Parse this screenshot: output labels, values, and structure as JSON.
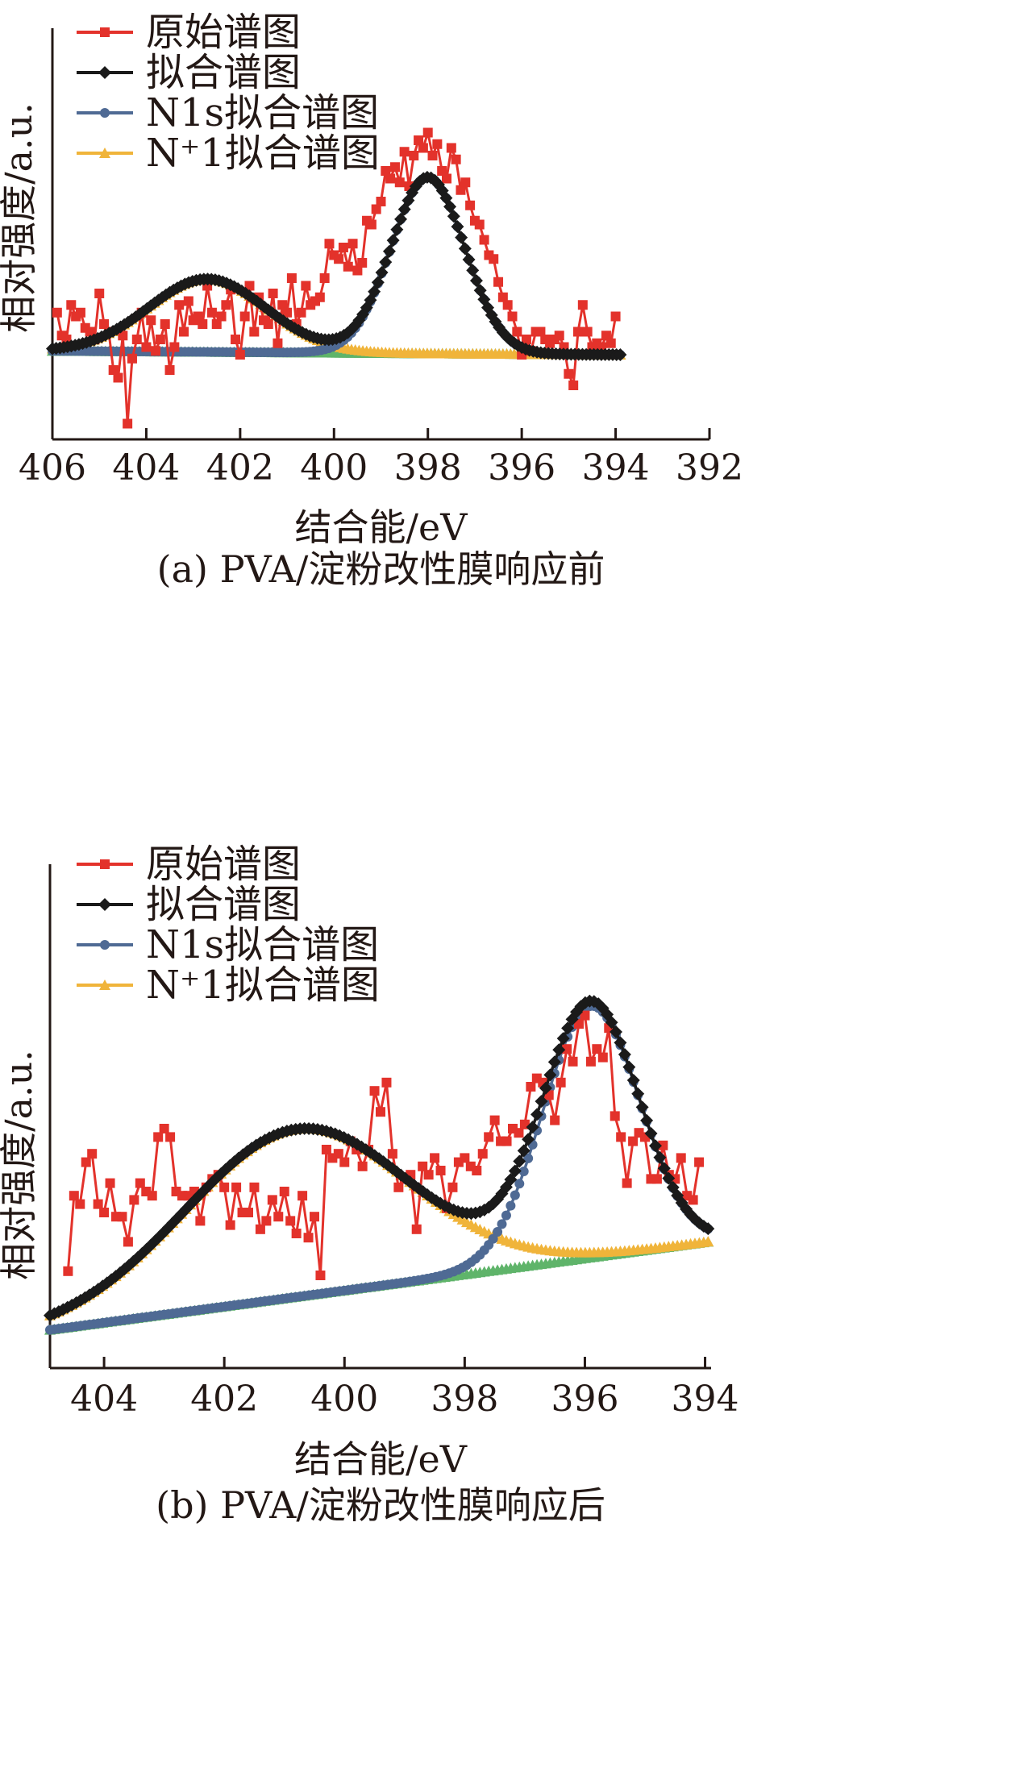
{
  "chart_data": [
    {
      "type": "line",
      "caption": "(a) PVA/淀粉改性膜响应前",
      "xlabel": "结合能/eV",
      "ylabel": "相对强度/a.u.",
      "xlim": [
        406,
        392
      ],
      "ylim": [
        0,
        1
      ],
      "x_reversed": true,
      "x_ticks": [
        406,
        404,
        402,
        400,
        398,
        396,
        394,
        392
      ],
      "legend_position": "top-left",
      "colors": {
        "raw": "#e3322b",
        "fit": "#1a1a1a",
        "n1s": "#4f6a94",
        "nplus": "#f0b43a",
        "base": "#5fb46a"
      },
      "series": [
        {
          "name": "原始谱图",
          "role": "raw",
          "marker": "square",
          "x": [
            405.9,
            405.8,
            405.7,
            405.6,
            405.5,
            405.4,
            405.3,
            405.2,
            405.1,
            405.0,
            404.9,
            404.8,
            404.7,
            404.6,
            404.5,
            404.4,
            404.3,
            404.2,
            404.1,
            404.0,
            403.9,
            403.8,
            403.7,
            403.6,
            403.5,
            403.4,
            403.3,
            403.2,
            403.1,
            403.0,
            402.9,
            402.8,
            402.7,
            402.6,
            402.5,
            402.4,
            402.3,
            402.2,
            402.1,
            402.0,
            401.9,
            401.8,
            401.7,
            401.6,
            401.5,
            401.4,
            401.3,
            401.2,
            401.1,
            401.0,
            400.9,
            400.8,
            400.7,
            400.6,
            400.5,
            400.4,
            400.3,
            400.2,
            400.1,
            400.0,
            399.9,
            399.8,
            399.7,
            399.6,
            399.5,
            399.4,
            399.3,
            399.2,
            399.1,
            399.0,
            398.9,
            398.8,
            398.7,
            398.6,
            398.5,
            398.4,
            398.3,
            398.2,
            398.1,
            398.0,
            397.9,
            397.8,
            397.7,
            397.6,
            397.5,
            397.4,
            397.3,
            397.2,
            397.1,
            397.0,
            396.9,
            396.8,
            396.7,
            396.6,
            396.5,
            396.4,
            396.3,
            396.2,
            396.1,
            396.0,
            395.9,
            395.8,
            395.7,
            395.6,
            395.5,
            395.4,
            395.3,
            395.2,
            395.1,
            395.0,
            394.9,
            394.8,
            394.7,
            394.6,
            394.5,
            394.4,
            394.3,
            394.2,
            394.1,
            394.0
          ],
          "y": [
            0.31,
            0.25,
            0.24,
            0.33,
            0.3,
            0.31,
            0.27,
            0.26,
            0.24,
            0.36,
            0.28,
            0.26,
            0.16,
            0.14,
            0.25,
            0.02,
            0.19,
            0.24,
            0.31,
            0.22,
            0.29,
            0.21,
            0.24,
            0.28,
            0.16,
            0.22,
            0.33,
            0.26,
            0.34,
            0.29,
            0.3,
            0.28,
            0.38,
            0.31,
            0.28,
            0.3,
            0.33,
            0.37,
            0.24,
            0.2,
            0.3,
            0.38,
            0.26,
            0.35,
            0.29,
            0.28,
            0.36,
            0.23,
            0.33,
            0.31,
            0.4,
            0.28,
            0.31,
            0.38,
            0.33,
            0.34,
            0.35,
            0.4,
            0.49,
            0.46,
            0.45,
            0.48,
            0.43,
            0.49,
            0.42,
            0.44,
            0.55,
            0.54,
            0.58,
            0.6,
            0.68,
            0.66,
            0.69,
            0.65,
            0.73,
            0.64,
            0.72,
            0.76,
            0.74,
            0.78,
            0.72,
            0.75,
            0.68,
            0.66,
            0.74,
            0.71,
            0.63,
            0.65,
            0.59,
            0.55,
            0.54,
            0.5,
            0.46,
            0.45,
            0.39,
            0.35,
            0.33,
            0.3,
            0.26,
            0.2,
            0.24,
            0.21,
            0.26,
            0.26,
            0.24,
            0.23,
            0.24,
            0.25,
            0.22,
            0.15,
            0.12,
            0.26,
            0.33,
            0.26,
            0.22,
            0.23,
            0.22,
            0.25,
            0.23,
            0.3
          ]
        },
        {
          "name": "拟合谱图",
          "role": "fit",
          "marker": "diamond",
          "x": [],
          "y": []
        },
        {
          "name": "N1s拟合谱图",
          "role": "n1s",
          "marker": "circle",
          "x": [],
          "y": []
        },
        {
          "name": "N⁺1拟合谱图",
          "role": "nplus",
          "marker": "triangle",
          "x": [],
          "y": []
        },
        {
          "name": "",
          "role": "base",
          "marker": "triangle",
          "x": [],
          "y": []
        }
      ]
    },
    {
      "type": "line",
      "caption": "(b) PVA/淀粉改性膜响应后",
      "xlabel": "结合能/eV",
      "ylabel": "相对强度/a.u.",
      "xlim": [
        404.9,
        393.9
      ],
      "ylim": [
        0,
        1
      ],
      "x_reversed": true,
      "x_ticks": [
        404,
        402,
        400,
        398,
        396,
        394
      ],
      "legend_position": "top-left",
      "colors": {
        "raw": "#e3322b",
        "fit": "#1a1a1a",
        "n1s": "#4f6a94",
        "nplus": "#f0b43a",
        "base": "#5fb46a"
      },
      "series": [
        {
          "name": "原始谱图",
          "role": "raw",
          "marker": "square",
          "x": [
            404.6,
            404.5,
            404.4,
            404.3,
            404.2,
            404.1,
            404.0,
            403.9,
            403.8,
            403.7,
            403.6,
            403.5,
            403.4,
            403.3,
            403.2,
            403.1,
            403.0,
            402.9,
            402.8,
            402.7,
            402.6,
            402.5,
            402.4,
            402.3,
            402.2,
            402.1,
            402.0,
            401.9,
            401.8,
            401.7,
            401.6,
            401.5,
            401.4,
            401.3,
            401.2,
            401.1,
            401.0,
            400.9,
            400.8,
            400.7,
            400.6,
            400.5,
            400.4,
            400.3,
            400.2,
            400.1,
            400.0,
            399.9,
            399.8,
            399.7,
            399.6,
            399.5,
            399.4,
            399.3,
            399.2,
            399.1,
            399.0,
            398.9,
            398.8,
            398.7,
            398.6,
            398.5,
            398.4,
            398.3,
            398.2,
            398.1,
            398.0,
            397.9,
            397.8,
            397.7,
            397.6,
            397.5,
            397.4,
            397.3,
            397.2,
            397.1,
            397.0,
            396.9,
            396.8,
            396.7,
            396.6,
            396.5,
            396.4,
            396.3,
            396.2,
            396.1,
            396.0,
            395.9,
            395.8,
            395.7,
            395.6,
            395.5,
            395.4,
            395.3,
            395.2,
            395.1,
            395.0,
            394.9,
            394.8,
            394.7,
            394.6,
            394.5,
            394.4,
            394.3,
            394.2,
            394.1
          ],
          "y": [
            0.16,
            0.34,
            0.32,
            0.42,
            0.44,
            0.32,
            0.3,
            0.37,
            0.29,
            0.29,
            0.23,
            0.33,
            0.37,
            0.35,
            0.34,
            0.48,
            0.5,
            0.48,
            0.35,
            0.34,
            0.34,
            0.35,
            0.28,
            0.36,
            0.38,
            0.39,
            0.36,
            0.27,
            0.36,
            0.3,
            0.3,
            0.36,
            0.26,
            0.28,
            0.33,
            0.29,
            0.35,
            0.28,
            0.25,
            0.34,
            0.24,
            0.29,
            0.15,
            0.45,
            0.43,
            0.44,
            0.42,
            0.47,
            0.45,
            0.41,
            0.45,
            0.59,
            0.54,
            0.61,
            0.44,
            0.36,
            0.38,
            0.39,
            0.26,
            0.41,
            0.39,
            0.43,
            0.4,
            0.31,
            0.36,
            0.42,
            0.43,
            0.41,
            0.4,
            0.44,
            0.48,
            0.52,
            0.47,
            0.47,
            0.5,
            0.49,
            0.51,
            0.6,
            0.62,
            0.61,
            0.58,
            0.52,
            0.61,
            0.69,
            0.66,
            0.75,
            0.77,
            0.66,
            0.69,
            0.67,
            0.74,
            0.53,
            0.48,
            0.37,
            0.47,
            0.49,
            0.48,
            0.38,
            0.38,
            0.46,
            0.39,
            0.38,
            0.43,
            0.34,
            0.33,
            0.42
          ]
        },
        {
          "name": "拟合谱图",
          "role": "fit",
          "marker": "diamond",
          "x": [],
          "y": []
        },
        {
          "name": "N1s拟合谱图",
          "role": "n1s",
          "marker": "circle",
          "x": [],
          "y": []
        },
        {
          "name": "N⁺1拟合谱图",
          "role": "nplus",
          "marker": "triangle",
          "x": [],
          "y": []
        },
        {
          "name": "",
          "role": "base",
          "marker": "triangle",
          "x": [],
          "y": []
        }
      ]
    }
  ]
}
